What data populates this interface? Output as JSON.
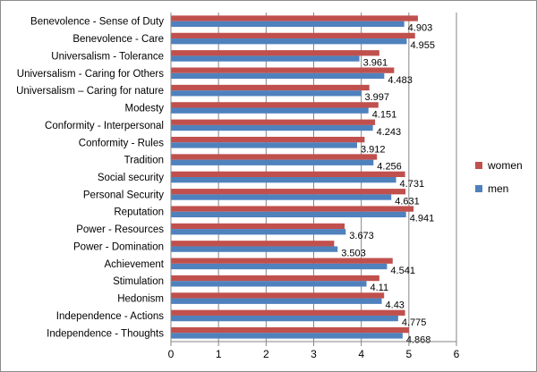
{
  "chart_data": {
    "type": "bar",
    "orientation": "horizontal",
    "categories": [
      "Benevolence - Sense of Duty",
      "Benevolence - Care",
      "Universalism - Tolerance",
      "Universalism - Caring for Others",
      "Universalism – Caring for nature",
      "Modesty",
      "Conformity - Interpersonal",
      "Conformity - Rules",
      "Tradition",
      "Social security",
      "Personal Security",
      "Reputation",
      "Power - Resources",
      "Power - Domination",
      "Achievement",
      "Stimulation",
      "Hedonism",
      "Independence - Actions",
      "Independence - Thoughts"
    ],
    "series": [
      {
        "name": "women",
        "color": "#c0504d",
        "values": [
          5.19,
          5.13,
          4.38,
          4.69,
          4.17,
          4.36,
          4.29,
          4.07,
          4.33,
          4.92,
          4.93,
          5.1,
          3.65,
          3.43,
          4.66,
          4.38,
          4.48,
          4.92,
          5.0
        ]
      },
      {
        "name": "men",
        "color": "#4f81bd",
        "values": [
          4.903,
          4.955,
          3.961,
          4.483,
          3.997,
          4.151,
          4.243,
          3.912,
          4.256,
          4.731,
          4.631,
          4.941,
          3.673,
          3.503,
          4.541,
          4.11,
          4.43,
          4.775,
          4.868
        ]
      }
    ],
    "data_labels": [
      "4.903",
      "4.955",
      "3.961",
      "4.483",
      "3.997",
      "4.151",
      "4.243",
      "3.912",
      "4.256",
      "4.731",
      "4.631",
      "4.941",
      "3.673",
      "3.503",
      "4.541",
      "4.11",
      "4.43",
      "4.775",
      "4.868"
    ],
    "xlim": [
      0,
      6
    ],
    "x_ticks": [
      "0",
      "1",
      "2",
      "3",
      "4",
      "5",
      "6"
    ],
    "grid": "vertical",
    "legend": {
      "placement": "right",
      "entries": [
        {
          "name": "women",
          "color": "#c0504d"
        },
        {
          "name": "men",
          "color": "#4f81bd"
        }
      ]
    },
    "title": "",
    "xlabel": "",
    "ylabel": ""
  }
}
